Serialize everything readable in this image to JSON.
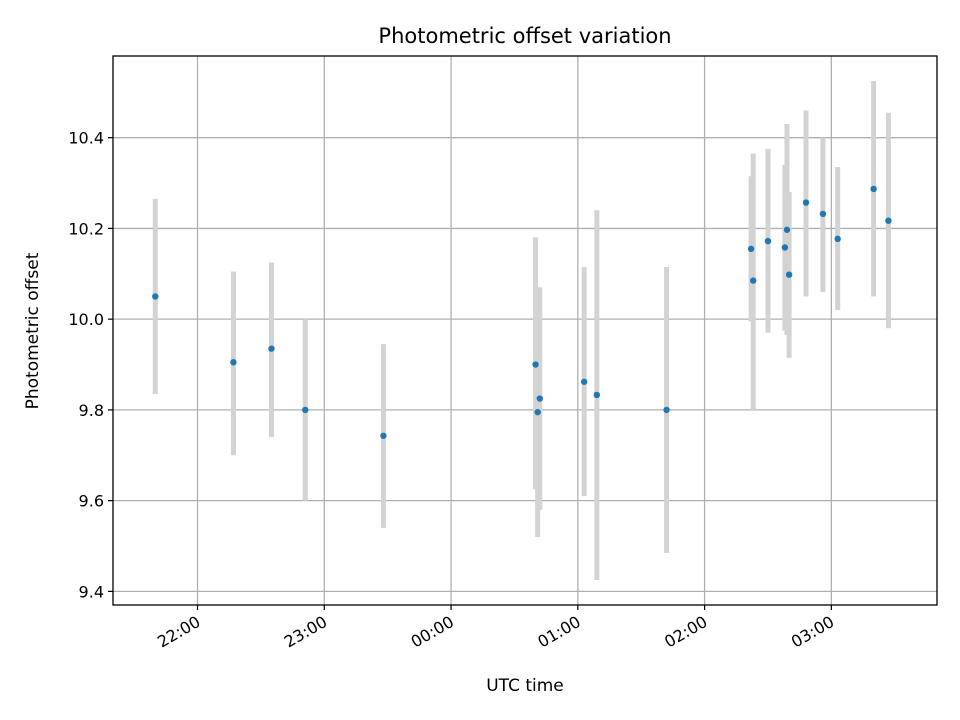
{
  "chart_data": {
    "type": "scatter",
    "title": "Photometric offset variation",
    "xlabel": "UTC time",
    "ylabel": "Photometric offset",
    "x_is_time": true,
    "xlim": [
      "21:20",
      "03:50"
    ],
    "ylim": [
      9.37,
      10.58
    ],
    "grid": true,
    "xticks": [
      "22:00",
      "23:00",
      "00:00",
      "01:00",
      "02:00",
      "03:00"
    ],
    "yticks": [
      9.4,
      9.6,
      9.8,
      10.0,
      10.2,
      10.4
    ],
    "ytick_labels": [
      "9.4",
      "9.6",
      "9.8",
      "10.0",
      "10.2",
      "10.4"
    ],
    "marker_color": "#1f77b4",
    "errorbar_color": "#d3d3d3",
    "points": [
      {
        "time": "21:40",
        "y": 10.05,
        "err_low": 9.835,
        "err_high": 10.265
      },
      {
        "time": "22:17",
        "y": 9.905,
        "err_low": 9.7,
        "err_high": 10.105
      },
      {
        "time": "22:35",
        "y": 9.935,
        "err_low": 9.74,
        "err_high": 10.125
      },
      {
        "time": "22:51",
        "y": 9.8,
        "err_low": 9.6,
        "err_high": 10.0
      },
      {
        "time": "23:28",
        "y": 9.743,
        "err_low": 9.54,
        "err_high": 9.945
      },
      {
        "time": "00:40",
        "y": 9.9,
        "err_low": 9.625,
        "err_high": 10.18
      },
      {
        "time": "00:41",
        "y": 9.795,
        "err_low": 9.52,
        "err_high": 10.07
      },
      {
        "time": "00:42",
        "y": 9.825,
        "err_low": 9.58,
        "err_high": 10.07
      },
      {
        "time": "01:03",
        "y": 9.862,
        "err_low": 9.61,
        "err_high": 10.115
      },
      {
        "time": "01:09",
        "y": 9.833,
        "err_low": 9.425,
        "err_high": 10.24
      },
      {
        "time": "01:42",
        "y": 9.8,
        "err_low": 9.485,
        "err_high": 10.115
      },
      {
        "time": "02:22",
        "y": 10.155,
        "err_low": 9.995,
        "err_high": 10.315
      },
      {
        "time": "02:23",
        "y": 10.085,
        "err_low": 9.8,
        "err_high": 10.365
      },
      {
        "time": "02:30",
        "y": 10.172,
        "err_low": 9.97,
        "err_high": 10.375
      },
      {
        "time": "02:38",
        "y": 10.158,
        "err_low": 9.975,
        "err_high": 10.34
      },
      {
        "time": "02:39",
        "y": 10.197,
        "err_low": 9.965,
        "err_high": 10.43
      },
      {
        "time": "02:40",
        "y": 10.098,
        "err_low": 9.915,
        "err_high": 10.28
      },
      {
        "time": "02:48",
        "y": 10.257,
        "err_low": 10.05,
        "err_high": 10.46
      },
      {
        "time": "02:56",
        "y": 10.232,
        "err_low": 10.06,
        "err_high": 10.4
      },
      {
        "time": "03:03",
        "y": 10.177,
        "err_low": 10.02,
        "err_high": 10.335
      },
      {
        "time": "03:20",
        "y": 10.287,
        "err_low": 10.05,
        "err_high": 10.525
      },
      {
        "time": "03:27",
        "y": 10.217,
        "err_low": 9.98,
        "err_high": 10.455
      }
    ]
  }
}
